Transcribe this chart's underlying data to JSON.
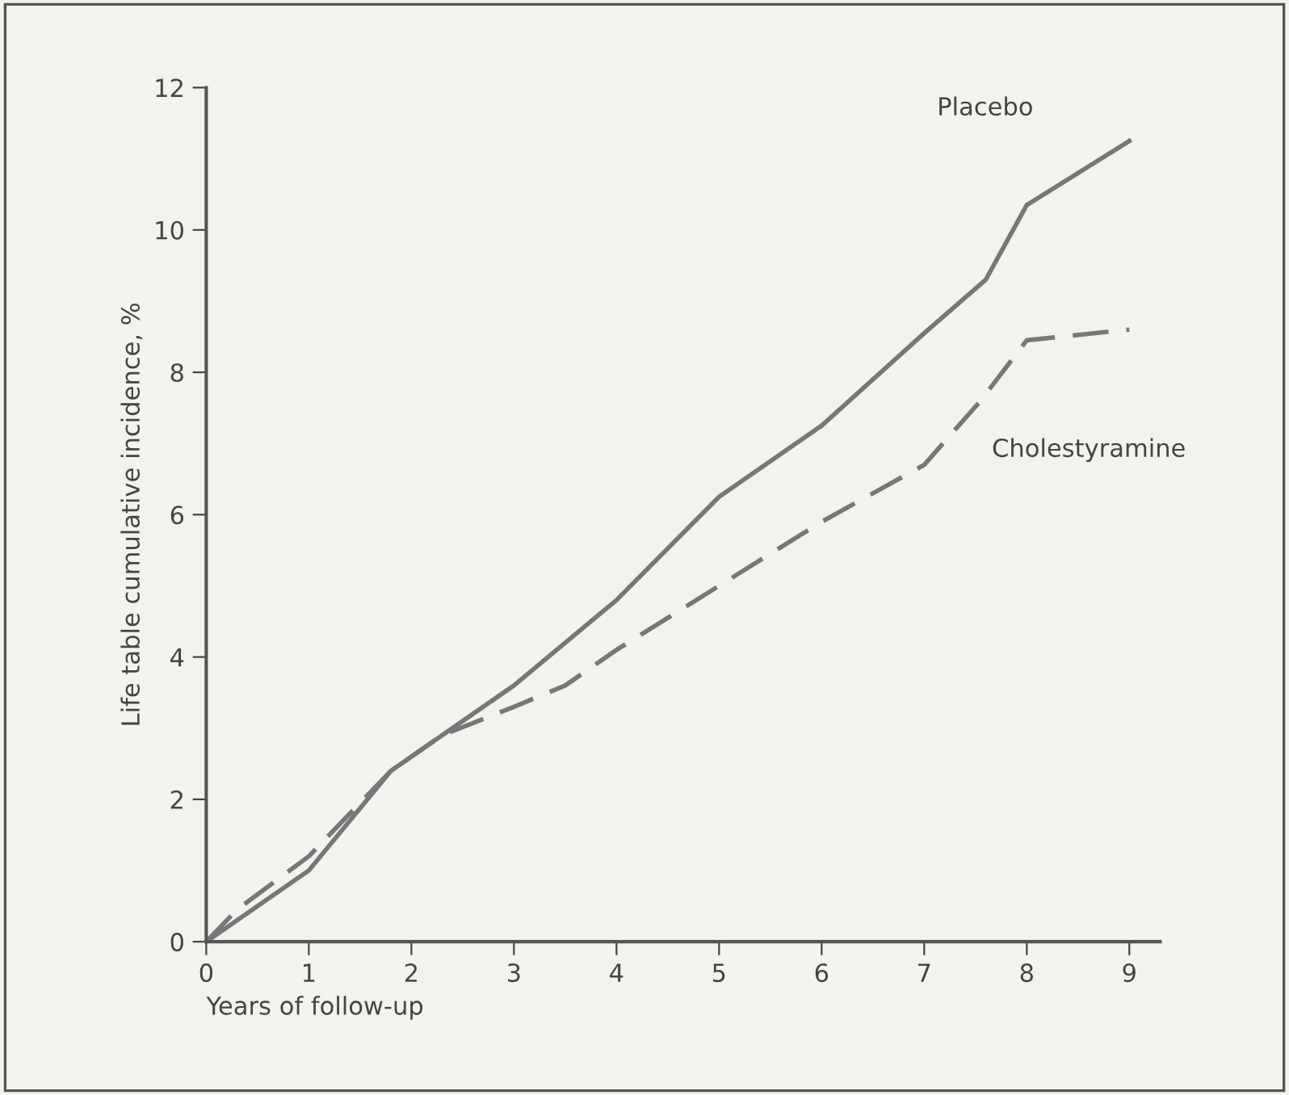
{
  "chart_data": {
    "type": "line",
    "xlabel": "Years of follow-up",
    "ylabel": "Life table cumulative incidence, %",
    "xlim": [
      0,
      9.3
    ],
    "ylim": [
      0,
      12
    ],
    "xticks": [
      0,
      1,
      2,
      3,
      4,
      5,
      6,
      7,
      8,
      9
    ],
    "yticks": [
      0,
      2,
      4,
      6,
      8,
      10,
      12
    ],
    "grid": false,
    "legend": false,
    "series": [
      {
        "name": "Placebo",
        "color": "#777777",
        "line_style": "solid",
        "x": [
          0,
          1,
          1.8,
          3,
          4,
          5,
          6,
          7,
          7.6,
          8,
          9
        ],
        "values": [
          0,
          1.0,
          2.4,
          3.6,
          4.8,
          6.25,
          7.25,
          8.55,
          9.3,
          10.35,
          11.25
        ]
      },
      {
        "name": "Cholestyramine",
        "color": "#777777",
        "line_style": "dashed",
        "x": [
          0,
          0.3,
          1,
          1.8,
          2.3,
          3,
          3.5,
          4,
          5,
          6,
          7,
          7.55,
          8,
          9
        ],
        "values": [
          0,
          0.45,
          1.2,
          2.4,
          2.9,
          3.3,
          3.6,
          4.1,
          5.0,
          5.9,
          6.7,
          7.6,
          8.45,
          8.6
        ]
      }
    ]
  }
}
